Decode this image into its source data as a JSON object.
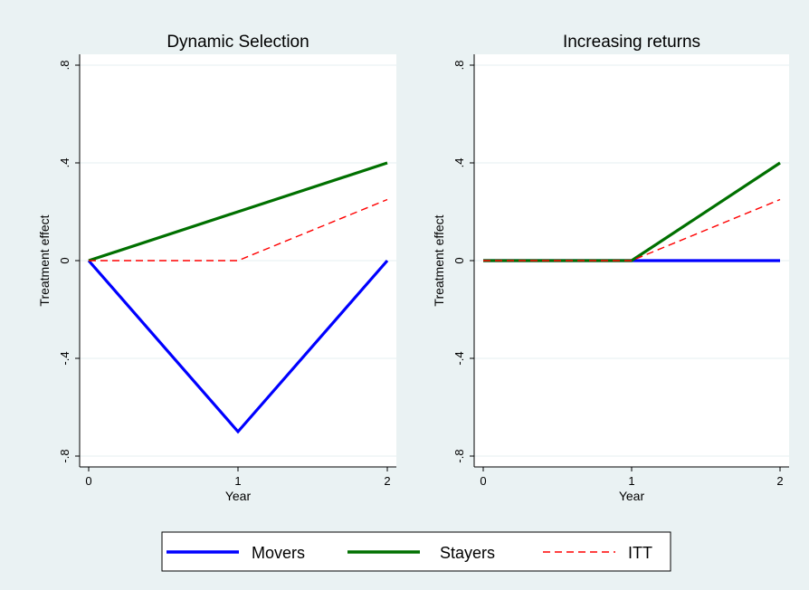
{
  "chart_data": [
    {
      "type": "line",
      "title": "Dynamic Selection",
      "xlabel": "Year",
      "ylabel": "Treatment effect",
      "x": [
        0,
        1,
        2
      ],
      "xticks": [
        "0",
        "1",
        "2"
      ],
      "yticks": [
        "-.8",
        "-.4",
        "0",
        ".4",
        ".8"
      ],
      "xlim": [
        0,
        2
      ],
      "ylim": [
        -0.8,
        0.8
      ],
      "grid": true,
      "series": [
        {
          "name": "Movers",
          "values": [
            0,
            -0.7,
            0
          ],
          "color": "#0000ff",
          "style": "solid"
        },
        {
          "name": "Stayers",
          "values": [
            0,
            0.2,
            0.4
          ],
          "color": "#007000",
          "style": "solid"
        },
        {
          "name": "ITT",
          "values": [
            0,
            0,
            0.25
          ],
          "color": "#ff0000",
          "style": "dashed"
        }
      ]
    },
    {
      "type": "line",
      "title": "Increasing returns",
      "xlabel": "Year",
      "ylabel": "Treatment effect",
      "x": [
        0,
        1,
        2
      ],
      "xticks": [
        "0",
        "1",
        "2"
      ],
      "yticks": [
        "-.8",
        "-.4",
        "0",
        ".4",
        ".8"
      ],
      "xlim": [
        0,
        2
      ],
      "ylim": [
        -0.8,
        0.8
      ],
      "grid": true,
      "series": [
        {
          "name": "Movers",
          "values": [
            0,
            0,
            0
          ],
          "color": "#0000ff",
          "style": "solid"
        },
        {
          "name": "Stayers",
          "values": [
            0,
            0,
            0.4
          ],
          "color": "#007000",
          "style": "solid"
        },
        {
          "name": "ITT",
          "values": [
            0,
            0,
            0.25
          ],
          "color": "#ff0000",
          "style": "dashed"
        }
      ]
    }
  ],
  "legend": {
    "placement": "bottom",
    "items": [
      {
        "label": "Movers",
        "color": "#0000ff",
        "style": "solid"
      },
      {
        "label": "Stayers",
        "color": "#007000",
        "style": "solid"
      },
      {
        "label": "ITT",
        "color": "#ff0000",
        "style": "dashed"
      }
    ]
  },
  "colors": {
    "outer_background": "#eaf2f3",
    "plot_background": "#ffffff",
    "grid": "#eaf2f3"
  }
}
